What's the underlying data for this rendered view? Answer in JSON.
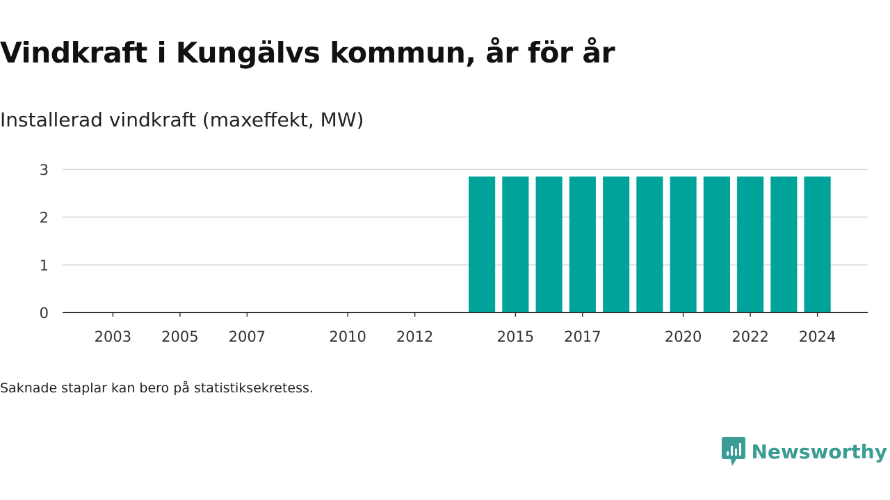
{
  "header": {
    "title": "Vindkraft i Kungälvs kommun, år för år",
    "subtitle": "Installerad vindkraft (maxeffekt, MW)"
  },
  "footer": {
    "note": "Saknade staplar kan bero på statistiksekretess.",
    "brand": "Newsworthy"
  },
  "colors": {
    "bar": "#00a39a",
    "brand": "#3a9c95",
    "grid": "#dddddd",
    "axis": "#333333"
  },
  "chart_data": {
    "type": "bar",
    "title": "Vindkraft i Kungälvs kommun, år för år",
    "subtitle": "Installerad vindkraft (maxeffekt, MW)",
    "xlabel": "",
    "ylabel": "",
    "ylim": [
      0,
      3
    ],
    "yticks": [
      0,
      1,
      2,
      3
    ],
    "categories": [
      2002,
      2003,
      2004,
      2005,
      2006,
      2007,
      2008,
      2009,
      2010,
      2011,
      2012,
      2013,
      2014,
      2015,
      2016,
      2017,
      2018,
      2019,
      2020,
      2021,
      2022,
      2023,
      2024
    ],
    "xtick_labels": [
      "2003",
      "2005",
      "2007",
      "2010",
      "2012",
      "2015",
      "2017",
      "2020",
      "2022",
      "2024"
    ],
    "values": [
      0,
      0,
      0,
      0,
      0,
      0,
      0,
      0,
      0,
      0,
      0,
      0,
      2.85,
      2.85,
      2.85,
      2.85,
      2.85,
      2.85,
      2.85,
      2.85,
      2.85,
      2.85,
      2.85
    ],
    "grid": true,
    "legend": "none"
  }
}
